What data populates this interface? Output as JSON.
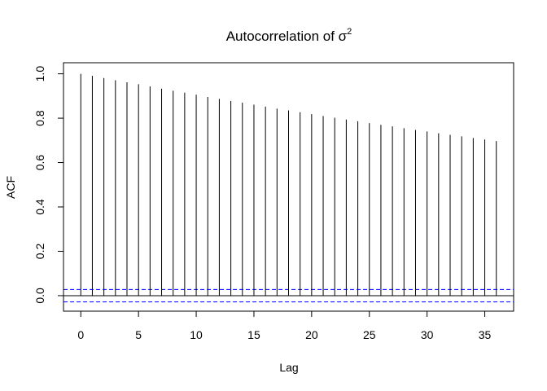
{
  "chart_data": {
    "type": "bar",
    "title": {
      "prefix": "Autocorrelation of ",
      "symbol": "σ",
      "superscript": "2"
    },
    "xlabel": "Lag",
    "ylabel": "ACF",
    "xlim": [
      -1.5,
      37.5
    ],
    "ylim": [
      -0.07,
      1.05
    ],
    "x_ticks": [
      0,
      5,
      10,
      15,
      20,
      25,
      30,
      35
    ],
    "y_ticks": [
      0.0,
      0.2,
      0.4,
      0.6,
      0.8,
      1.0
    ],
    "y_tick_labels": [
      "0.0",
      "0.2",
      "0.4",
      "0.6",
      "0.8",
      "1.0"
    ],
    "lags": [
      0,
      1,
      2,
      3,
      4,
      5,
      6,
      7,
      8,
      9,
      10,
      11,
      12,
      13,
      14,
      15,
      16,
      17,
      18,
      19,
      20,
      21,
      22,
      23,
      24,
      25,
      26,
      27,
      28,
      29,
      30,
      31,
      32,
      33,
      34,
      35,
      36
    ],
    "values": [
      1.0,
      0.991,
      0.981,
      0.971,
      0.962,
      0.953,
      0.943,
      0.933,
      0.924,
      0.915,
      0.906,
      0.896,
      0.887,
      0.878,
      0.87,
      0.861,
      0.852,
      0.843,
      0.835,
      0.827,
      0.818,
      0.81,
      0.802,
      0.794,
      0.786,
      0.778,
      0.77,
      0.763,
      0.755,
      0.747,
      0.74,
      0.732,
      0.725,
      0.718,
      0.711,
      0.704,
      0.697
    ],
    "confidence_bounds": [
      0.028,
      -0.028
    ],
    "grid": false,
    "colors": {
      "bars": "#000000",
      "zero_line": "#000000",
      "confidence": "#0000ff"
    }
  }
}
